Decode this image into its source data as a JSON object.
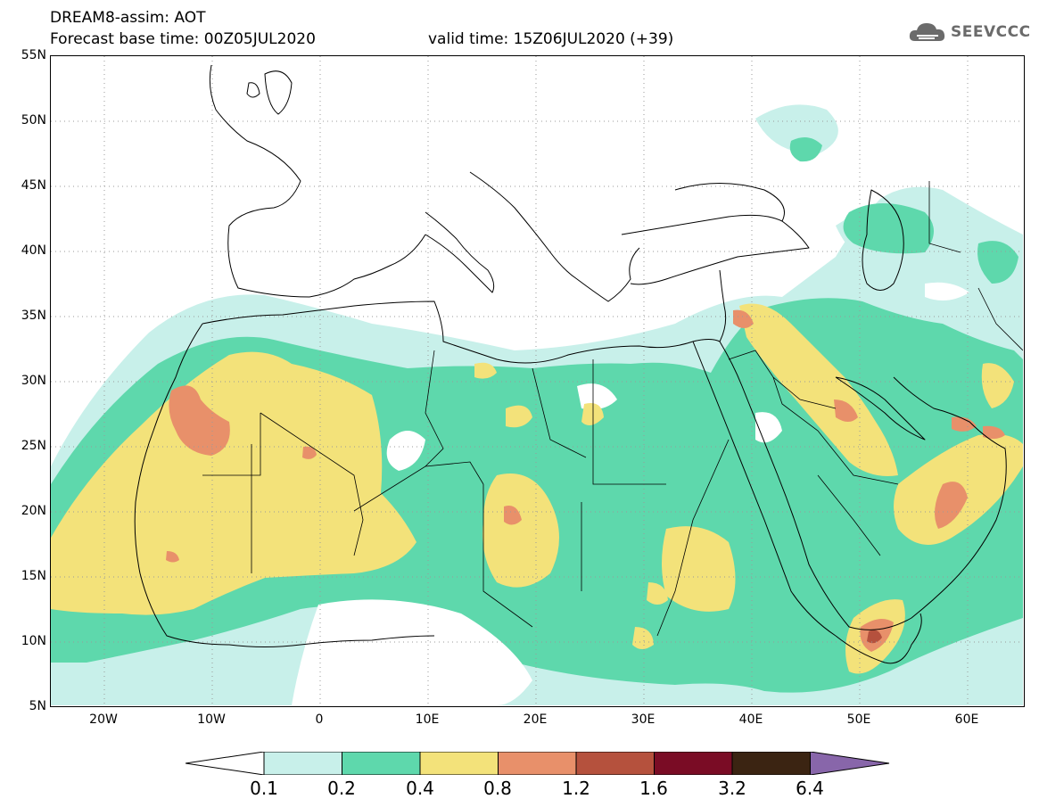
{
  "header": {
    "line1": "DREAM8-assim: AOT",
    "line2a": "Forecast base time: 00Z05JUL2020",
    "line2b": "valid time: 15Z06JUL2020 (+39)"
  },
  "logo": {
    "text": "SEEVCCC",
    "icon": "cloud-icon"
  },
  "axes": {
    "lat_labels": [
      "55N",
      "50N",
      "45N",
      "40N",
      "35N",
      "30N",
      "25N",
      "20N",
      "15N",
      "10N",
      "5N"
    ],
    "lon_labels": [
      "20W",
      "10W",
      "0",
      "10E",
      "20E",
      "30E",
      "40E",
      "50E",
      "60E"
    ],
    "lat_range": [
      5,
      55
    ],
    "lon_range": [
      -25,
      65
    ]
  },
  "legend": {
    "thresholds": [
      "0.1",
      "0.2",
      "0.4",
      "0.8",
      "1.2",
      "1.6",
      "3.2",
      "6.4"
    ],
    "colors": [
      "#c8f0ea",
      "#5ed8ac",
      "#f3e27a",
      "#e8906a",
      "#b5513d",
      "#7a0c25",
      "#3b2412",
      "#8866aa"
    ]
  },
  "colors": {
    "level1": "#c8f0ea",
    "level2": "#5ed8ac",
    "level3": "#f3e27a",
    "level4": "#e8906a",
    "level5": "#b5513d"
  }
}
